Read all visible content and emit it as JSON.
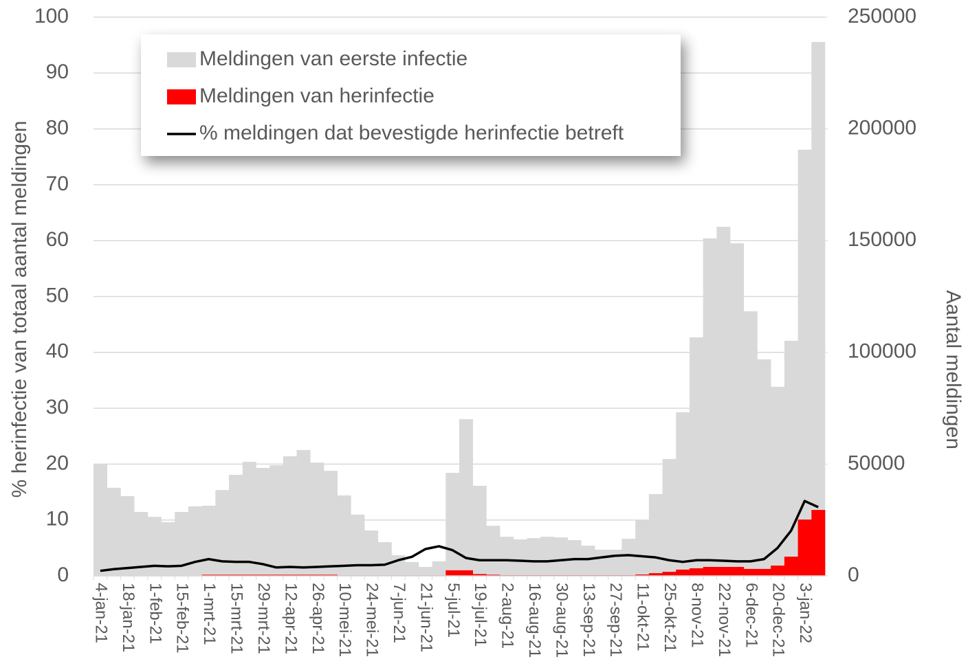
{
  "chart_data": {
    "type": "bar",
    "categories": [
      "4-jan-21",
      null,
      "18-jan-21",
      null,
      "1-feb-21",
      null,
      "15-feb-21",
      null,
      "1-mrt-21",
      null,
      "15-mrt-21",
      null,
      "29-mrt-21",
      null,
      "12-apr-21",
      null,
      "26-apr-21",
      null,
      "10-mei-21",
      null,
      "24-mei-21",
      null,
      "7-jun-21",
      null,
      "21-jun-21",
      null,
      "5-jul-21",
      null,
      "19-jul-21",
      null,
      "2-aug-21",
      null,
      "16-aug-21",
      null,
      "30-aug-21",
      null,
      "13-sep-21",
      null,
      "27-sep-21",
      null,
      "11-okt-21",
      null,
      "25-okt-21",
      null,
      "8-nov-21",
      null,
      "22-nov-21",
      null,
      "6-dec-21",
      null,
      "20-dec-21",
      null,
      "3-jan-22",
      null
    ],
    "series": [
      {
        "name": "Meldingen van eerste infectie",
        "type": "bar",
        "axis": "y2",
        "color": "#d9d9d9",
        "values": [
          50100,
          39400,
          35700,
          28600,
          26400,
          24000,
          28600,
          31100,
          31400,
          38400,
          45200,
          51000,
          48300,
          49500,
          53500,
          56300,
          50700,
          47000,
          36000,
          27400,
          20300,
          15100,
          9200,
          6200,
          4000,
          6500,
          46100,
          70100,
          40300,
          22400,
          17500,
          16300,
          16900,
          17500,
          17200,
          16000,
          13500,
          11700,
          11700,
          16600,
          25200,
          36600,
          52300,
          73200,
          106700,
          151000,
          156200,
          148800,
          118400,
          96900,
          84600,
          105200,
          190700,
          238900
        ]
      },
      {
        "name": "Meldingen van herinfectie",
        "type": "bar",
        "axis": "y2",
        "color": "#ff0000",
        "values": [
          100,
          100,
          100,
          100,
          100,
          100,
          100,
          100,
          500,
          500,
          500,
          500,
          500,
          500,
          500,
          500,
          500,
          500,
          200,
          200,
          200,
          200,
          200,
          200,
          200,
          200,
          2500,
          2500,
          800,
          500,
          300,
          300,
          300,
          300,
          300,
          300,
          300,
          300,
          300,
          300,
          600,
          1200,
          1800,
          2800,
          3400,
          4000,
          4000,
          4000,
          3100,
          3100,
          4600,
          8600,
          25200,
          29500
        ]
      },
      {
        "name": "% meldingen dat bevestigde herinfectie betreft",
        "type": "line",
        "axis": "y",
        "color": "#000000",
        "values": [
          0.9,
          1.2,
          1.4,
          1.6,
          1.8,
          1.7,
          1.8,
          2.5,
          3.0,
          2.6,
          2.5,
          2.5,
          2.1,
          1.5,
          1.6,
          1.5,
          1.6,
          1.7,
          1.8,
          1.9,
          1.9,
          2.0,
          2.8,
          3.4,
          4.8,
          5.3,
          4.6,
          3.2,
          2.8,
          2.8,
          2.8,
          2.7,
          2.6,
          2.6,
          2.8,
          3.0,
          3.0,
          3.3,
          3.6,
          3.7,
          3.5,
          3.3,
          2.8,
          2.5,
          2.8,
          2.8,
          2.7,
          2.6,
          2.6,
          3.0,
          5.0,
          8.1,
          13.4,
          12.3
        ]
      }
    ],
    "y_label": "% herinfectie van totaal aantal meldingen",
    "y2_label": "Aantal meldingen",
    "ylim": [
      0,
      100
    ],
    "yticks": [
      0,
      10,
      20,
      30,
      40,
      50,
      60,
      70,
      80,
      90,
      100
    ],
    "y2lim": [
      0,
      250000
    ],
    "y2ticks": [
      0,
      50000,
      100000,
      150000,
      200000,
      250000
    ],
    "grid": true,
    "legend": "top-left"
  }
}
